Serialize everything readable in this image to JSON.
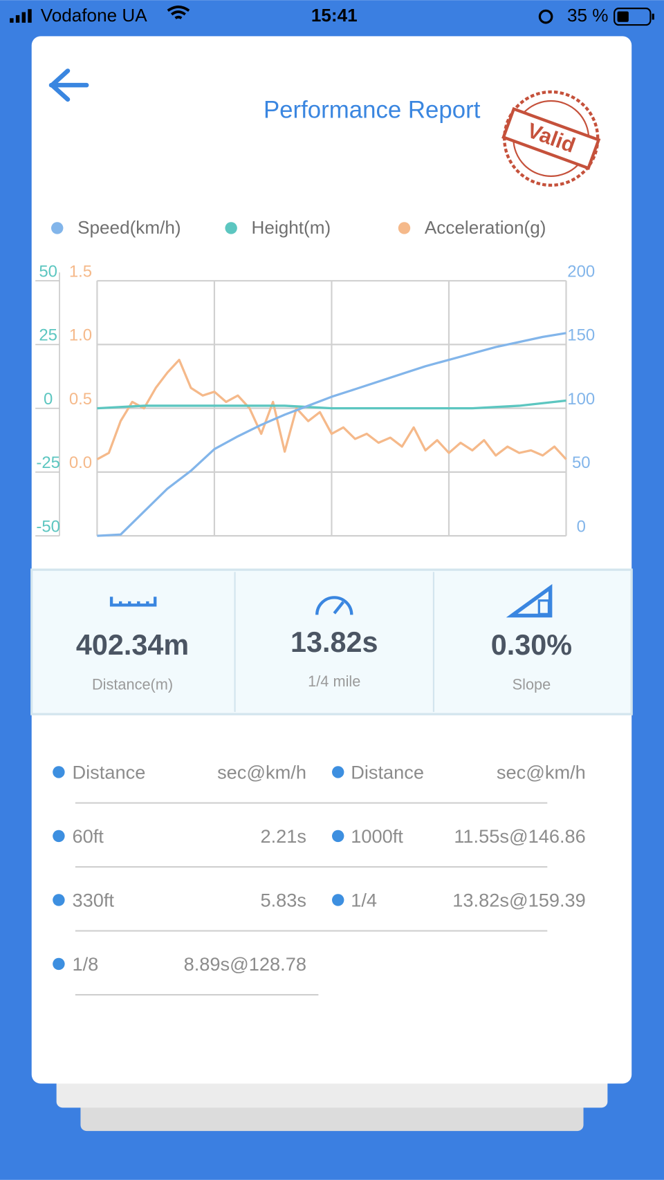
{
  "status_bar": {
    "carrier": "Vodafone UA",
    "time": "15:41",
    "battery": "35 %"
  },
  "header": {
    "title": "Performance Report",
    "stamp": "Valid"
  },
  "chart_data": {
    "type": "line",
    "ylim": [
      -50,
      50
    ],
    "yticks": [
      -50,
      -25,
      0,
      25,
      50
    ],
    "y2lim": [
      0,
      200
    ],
    "y2ticks": [
      0,
      50,
      100,
      150,
      200
    ],
    "y3lim": [
      -0.5,
      1.5
    ],
    "y3ticks": [
      {
        "value": 0,
        "label": "0.0"
      },
      0.5,
      {
        "value": 1,
        "label": "1.0"
      },
      1.5
    ],
    "grid": true,
    "series": [
      {
        "name": "Speed(km/h)",
        "color": "#82b5ea",
        "axis": "y2",
        "values": [
          0,
          1,
          19,
          37,
          51,
          68,
          78,
          87,
          95,
          102,
          109,
          115,
          121,
          127,
          133,
          138,
          143,
          148,
          152,
          156,
          159
        ]
      },
      {
        "name": "Height(m)",
        "color": "#5cc6c0",
        "axis": "y",
        "values": [
          0,
          1,
          1,
          1,
          1,
          0,
          0,
          0,
          0,
          1,
          3
        ]
      },
      {
        "name": "Acceleration(g)",
        "color": "#f5b98a",
        "axis": "y3",
        "values": [
          0.1,
          0.15,
          0.4,
          0.55,
          0.5,
          0.66,
          0.78,
          0.88,
          0.66,
          0.6,
          0.63,
          0.55,
          0.6,
          0.5,
          0.3,
          0.55,
          0.16,
          0.5,
          0.4,
          0.47,
          0.3,
          0.35,
          0.26,
          0.3,
          0.23,
          0.27,
          0.2,
          0.35,
          0.17,
          0.25,
          0.15,
          0.23,
          0.17,
          0.25,
          0.13,
          0.2,
          0.15,
          0.17,
          0.13,
          0.2,
          0.1
        ]
      }
    ]
  },
  "stats": [
    {
      "value": "402.34m",
      "label": "Distance(m)"
    },
    {
      "value": "13.82s",
      "label": "1/4 mile"
    },
    {
      "value": "0.30%",
      "label": "Slope"
    }
  ],
  "table": {
    "left": {
      "header": [
        "Distance",
        "sec@km/h"
      ],
      "rows": [
        [
          "60ft",
          "2.21s"
        ],
        [
          "330ft",
          "5.83s"
        ],
        [
          "1/8",
          "8.89s@128.78"
        ]
      ]
    },
    "right": {
      "header": [
        "Distance",
        "sec@km/h"
      ],
      "rows": [
        [
          "1000ft",
          "11.55s@146.86"
        ],
        [
          "1/4",
          "13.82s@159.39"
        ]
      ]
    }
  }
}
